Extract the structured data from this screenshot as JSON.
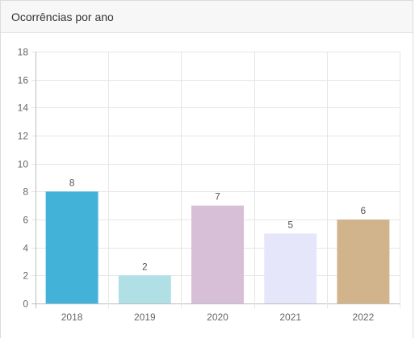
{
  "card": {
    "title": "Ocorrências por ano"
  },
  "chart_data": {
    "type": "bar",
    "categories": [
      "2018",
      "2019",
      "2020",
      "2021",
      "2022"
    ],
    "values": [
      8,
      2,
      7,
      5,
      6
    ],
    "colors": [
      "#43b2d9",
      "#b0dfe6",
      "#d8bfd8",
      "#e6e6fa",
      "#d2b48c"
    ],
    "ylim": [
      0,
      18
    ],
    "yticks": [
      0,
      2,
      4,
      6,
      8,
      10,
      12,
      14,
      16,
      18
    ],
    "grid": true,
    "legend": "none",
    "data_labels": true,
    "title": "",
    "xlabel": "",
    "ylabel": ""
  }
}
